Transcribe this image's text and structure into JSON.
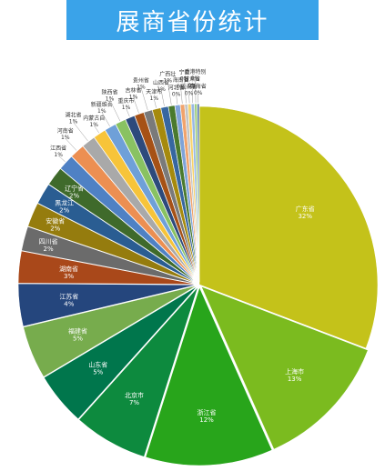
{
  "chart_data": {
    "type": "pie",
    "title": "展商省份统计",
    "slices": [
      {
        "name": "广东省",
        "label": "32%",
        "value": 32,
        "color": "#c4c21a"
      },
      {
        "name": "上海市",
        "label": "13%",
        "value": 13,
        "color": "#7bbb1f"
      },
      {
        "name": "浙江省",
        "label": "12%",
        "value": 12,
        "color": "#28a51b"
      },
      {
        "name": "北京市",
        "label": "7%",
        "value": 7,
        "color": "#0d8a3e"
      },
      {
        "name": "山东省",
        "label": "5%",
        "value": 5,
        "color": "#00764c"
      },
      {
        "name": "福建省",
        "label": "5%",
        "value": 5,
        "color": "#77ac4d"
      },
      {
        "name": "江苏省",
        "label": "4%",
        "value": 4,
        "color": "#25467d"
      },
      {
        "name": "湖南省",
        "label": "3%",
        "value": 3,
        "color": "#a9481a"
      },
      {
        "name": "四川省",
        "label": "2%",
        "value": 2.3,
        "color": "#6b6b6b"
      },
      {
        "name": "安徽省",
        "label": "2%",
        "value": 2.3,
        "color": "#957c0e"
      },
      {
        "name": "黑龙江",
        "label": "2%",
        "value": 2.0,
        "color": "#2a5d92"
      },
      {
        "name": "辽宁省",
        "label": "2%",
        "value": 1.8,
        "color": "#3f6a2b"
      },
      {
        "name": "江西省",
        "label": "1%",
        "value": 1.5,
        "color": "#4f81c4"
      },
      {
        "name": "河南省",
        "label": "1%",
        "value": 1.4,
        "color": "#ec8f52"
      },
      {
        "name": "湖北省",
        "label": "1%",
        "value": 1.3,
        "color": "#a9a9a9"
      },
      {
        "name": "内蒙古自",
        "label": "1%",
        "value": 1.2,
        "color": "#f7c43a"
      },
      {
        "name": "新疆维吾",
        "label": "1%",
        "value": 1.1,
        "color": "#6fa0d8"
      },
      {
        "name": "陕西省",
        "label": "1%",
        "value": 1.0,
        "color": "#89c262"
      },
      {
        "name": "重庆市",
        "label": "1%",
        "value": 0.9,
        "color": "#2d4a7c"
      },
      {
        "name": "吉林省",
        "label": "1%",
        "value": 0.9,
        "color": "#a65116"
      },
      {
        "name": "贵州省",
        "label": "1%",
        "value": 0.8,
        "color": "#7a7a7a"
      },
      {
        "name": "天津市",
        "label": "1%",
        "value": 0.8,
        "color": "#a68a0d"
      },
      {
        "name": "山西省",
        "label": "1%",
        "value": 0.7,
        "color": "#3767a0"
      },
      {
        "name": "广西壮",
        "label": "1%",
        "value": 0.6,
        "color": "#4a7a2e"
      },
      {
        "name": "河北省",
        "label": "0%",
        "value": 0.5,
        "color": "#7ea3d9"
      },
      {
        "name": "海南省",
        "label": "0%",
        "value": 0.4,
        "color": "#f1a36c"
      },
      {
        "name": "宁夏",
        "label": "0%",
        "value": 0.3,
        "color": "#c4c4c4"
      },
      {
        "name": "云南省",
        "label": "0%",
        "value": 0.3,
        "color": "#f8d36a"
      },
      {
        "name": "甘肃省",
        "label": "0%",
        "value": 0.3,
        "color": "#98b8e3"
      },
      {
        "name": "香港特别",
        "label": "0%",
        "value": 0.25,
        "color": "#a1cf7e"
      },
      {
        "name": "青海省",
        "label": "0%",
        "value": 0.2,
        "color": "#5b7bb0"
      }
    ],
    "legend": "none"
  }
}
